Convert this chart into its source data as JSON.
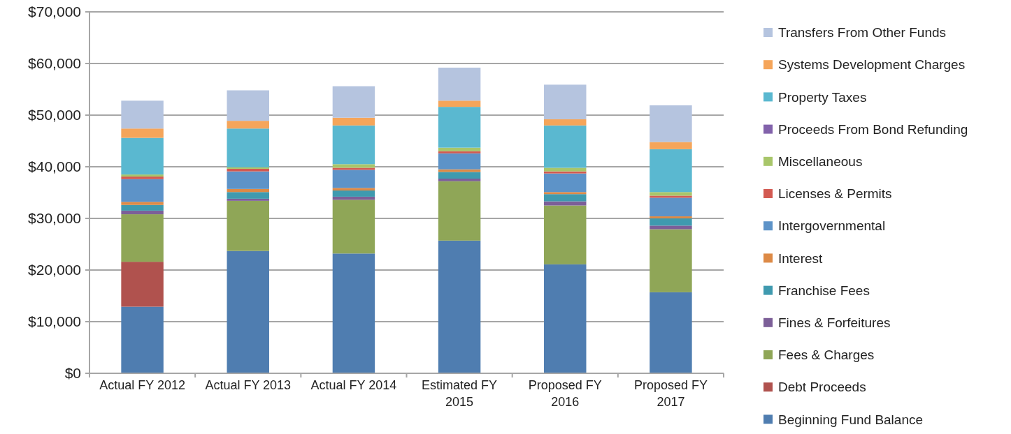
{
  "chart_data": {
    "type": "bar",
    "stacked": true,
    "categories": [
      "Actual FY 2012",
      "Actual FY 2013",
      "Actual FY 2014",
      "Estimated FY 2015",
      "Proposed FY 2016",
      "Proposed FY 2017"
    ],
    "ylim": [
      0,
      70000
    ],
    "yticks": [
      {
        "value": 0,
        "label": "$0"
      },
      {
        "value": 10000,
        "label": "$10,000"
      },
      {
        "value": 20000,
        "label": "$20,000"
      },
      {
        "value": 30000,
        "label": "$30,000"
      },
      {
        "value": 40000,
        "label": "$40,000"
      },
      {
        "value": 50000,
        "label": "$50,000"
      },
      {
        "value": 60000,
        "label": "$60,000"
      },
      {
        "value": 70000,
        "label": "$70,000"
      }
    ],
    "grid": "y",
    "legend": "right",
    "series": [
      {
        "name": "Beginning Fund Balance",
        "color": "#4f7db0",
        "values": [
          12900,
          23700,
          23200,
          25700,
          21100,
          15700
        ]
      },
      {
        "name": "Debt Proceeds",
        "color": "#b0524e",
        "values": [
          8700,
          0,
          0,
          0,
          0,
          0
        ]
      },
      {
        "name": "Fees & Charges",
        "color": "#8fa657",
        "values": [
          9200,
          9700,
          10400,
          11500,
          11400,
          12200
        ]
      },
      {
        "name": "Fines & Forfeitures",
        "color": "#7c5f98",
        "values": [
          700,
          400,
          600,
          500,
          800,
          700
        ]
      },
      {
        "name": "Franchise Fees",
        "color": "#3f9aaf",
        "values": [
          1100,
          1300,
          1200,
          1300,
          1400,
          1400
        ]
      },
      {
        "name": "Interest",
        "color": "#dd8a46",
        "values": [
          600,
          600,
          500,
          500,
          400,
          400
        ]
      },
      {
        "name": "Intergovernmental",
        "color": "#5d93c8",
        "values": [
          4400,
          3400,
          3500,
          3100,
          3600,
          3600
        ]
      },
      {
        "name": "Licenses & Permits",
        "color": "#d35a52",
        "values": [
          500,
          500,
          400,
          400,
          400,
          400
        ]
      },
      {
        "name": "Miscellaneous",
        "color": "#a8c66a",
        "values": [
          400,
          300,
          700,
          700,
          700,
          700
        ]
      },
      {
        "name": "Proceeds From Bond Refunding",
        "color": "#8262ab",
        "values": [
          0,
          0,
          0,
          0,
          0,
          0
        ]
      },
      {
        "name": "Property Taxes",
        "color": "#5ab8d0",
        "values": [
          7100,
          7500,
          7500,
          7900,
          8200,
          8300
        ]
      },
      {
        "name": "Systems Development Charges",
        "color": "#f5a55a",
        "values": [
          1800,
          1500,
          1500,
          1200,
          1200,
          1400
        ]
      },
      {
        "name": "Transfers From Other Funds",
        "color": "#b5c4df",
        "values": [
          5400,
          5900,
          6100,
          6400,
          6700,
          7100
        ]
      }
    ]
  }
}
